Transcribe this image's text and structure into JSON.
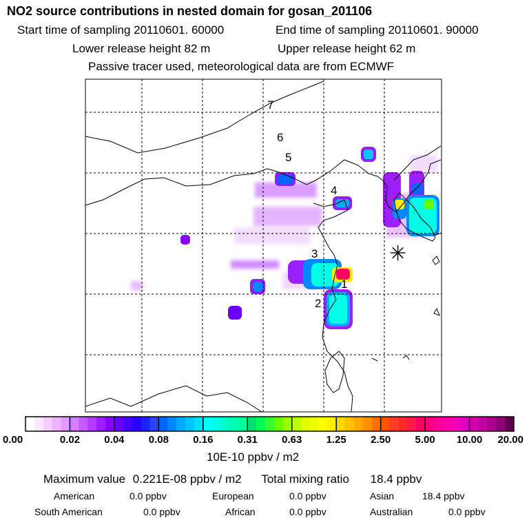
{
  "header": {
    "title": "NO2 source contributions in nested domain for gosan_201106",
    "start_time": "Start time of sampling 20110601. 60000",
    "end_time": "End time of sampling 20110601. 90000",
    "lower_release": "Lower release height   82 m",
    "upper_release": "Upper release height   62 m",
    "info": "Passive tracer used, meteorological data are from ECMWF"
  },
  "map": {
    "labels": [
      "1",
      "2",
      "3",
      "4",
      "5",
      "6",
      "7"
    ],
    "receptor_symbol": "✳",
    "colors": {
      "coast": "#000000",
      "grid": "#000000"
    }
  },
  "colorbar": {
    "ticks": [
      "0.00",
      "0.02",
      "0.04",
      "0.08",
      "0.16",
      "0.31",
      "0.63",
      "1.25",
      "2.50",
      "5.00",
      "10.00",
      "20.00"
    ],
    "colors": [
      [
        "#ffffff",
        "#fbe7ff",
        "#f4cdff",
        "#ecb3ff",
        "#e39aff"
      ],
      [
        "#d77dff",
        "#c45cff",
        "#b23dff",
        "#9b1fff",
        "#8a00ff"
      ],
      [
        "#6a00ff",
        "#4a00ff",
        "#2a00ff",
        "#1a22ff",
        "#2a44ff"
      ],
      [
        "#0066ff",
        "#0088ff",
        "#00a8ff",
        "#00c4ff",
        "#00dfff"
      ],
      [
        "#00ffff",
        "#00ffe6",
        "#00ffcc",
        "#00ffb0",
        "#00ff99"
      ],
      [
        "#00e070",
        "#00ff55",
        "#33ff33",
        "#66ff00",
        "#99ff00"
      ],
      [
        "#bbff00",
        "#ddff00",
        "#eeff00",
        "#ffff00",
        "#ffee00"
      ],
      [
        "#ffd700",
        "#ffc000",
        "#ffaa00",
        "#ff9000",
        "#ff7000"
      ],
      [
        "#ff5500",
        "#ff3b2a",
        "#ff2b2b",
        "#ff1a4a",
        "#ff0066"
      ],
      [
        "#ff0080",
        "#ff0099",
        "#ff00aa",
        "#f200b8",
        "#e000c0"
      ],
      [
        "#d000b0",
        "#c0009f",
        "#a8008c",
        "#900078",
        "#600050"
      ]
    ],
    "units": "10E-10 ppbv / m2"
  },
  "summary": {
    "max_label": "Maximum value",
    "max_value": "0.221E-08 ppbv / m2",
    "total_label": "Total mixing ratio",
    "total_value": "18.4 ppbv",
    "american_label": "American",
    "american_value": "0.0 ppbv",
    "european_label": "European",
    "european_value": "0.0 ppbv",
    "asian_label": "Asian",
    "asian_value": "18.4 ppbv",
    "south_american_label": "South American",
    "south_american_value": "0.0 ppbv",
    "african_label": "African",
    "african_value": "0.0 ppbv",
    "australian_label": "Australian",
    "australian_value": "0.0 ppbv"
  }
}
